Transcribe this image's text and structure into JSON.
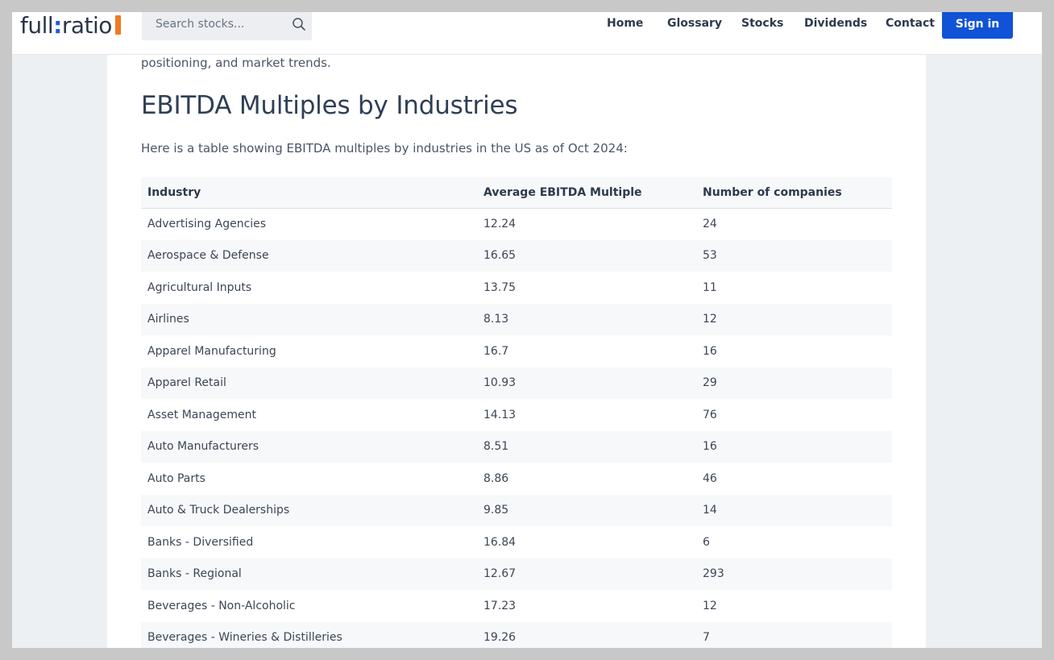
{
  "brand": {
    "name_part1": "full",
    "name_colon": ":",
    "name_part2": "ratio",
    "accent_color": "#1153d6",
    "badge_color": "#f07a22"
  },
  "search": {
    "placeholder": "Search stocks...",
    "value": ""
  },
  "nav": {
    "home": "Home",
    "glossary": "Glossary",
    "stocks": "Stocks",
    "dividends": "Dividends",
    "contact": "Contact",
    "signin": "Sign in"
  },
  "article": {
    "intro_tail": "positioning, and market trends.",
    "section_title": "EBITDA Multiples by Industries",
    "section_desc": "Here is a table showing EBITDA multiples by industries in the US as of Oct 2024:"
  },
  "table": {
    "headers": [
      "Industry",
      "Average EBITDA Multiple",
      "Number of companies"
    ],
    "rows": [
      [
        "Advertising Agencies",
        "12.24",
        "24"
      ],
      [
        "Aerospace & Defense",
        "16.65",
        "53"
      ],
      [
        "Agricultural Inputs",
        "13.75",
        "11"
      ],
      [
        "Airlines",
        "8.13",
        "12"
      ],
      [
        "Apparel Manufacturing",
        "16.7",
        "16"
      ],
      [
        "Apparel Retail",
        "10.93",
        "29"
      ],
      [
        "Asset Management",
        "14.13",
        "76"
      ],
      [
        "Auto Manufacturers",
        "8.51",
        "16"
      ],
      [
        "Auto Parts",
        "8.86",
        "46"
      ],
      [
        "Auto & Truck Dealerships",
        "9.85",
        "14"
      ],
      [
        "Banks - Diversified",
        "16.84",
        "6"
      ],
      [
        "Banks - Regional",
        "12.67",
        "293"
      ],
      [
        "Beverages - Non-Alcoholic",
        "17.23",
        "12"
      ],
      [
        "Beverages - Wineries & Distilleries",
        "19.26",
        "7"
      ]
    ]
  }
}
